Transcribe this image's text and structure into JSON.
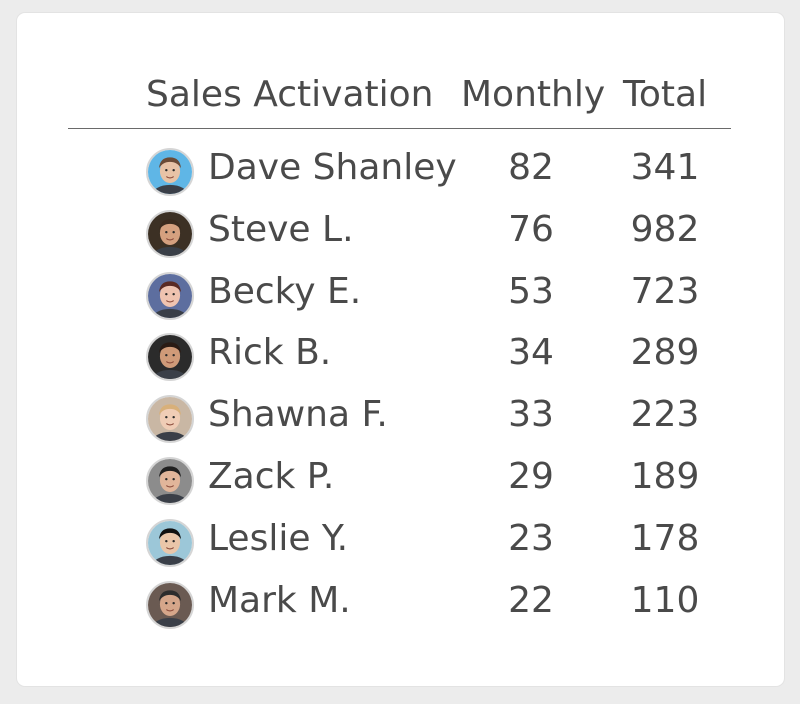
{
  "header": {
    "name": "Sales Activation",
    "monthly": "Monthly",
    "total": "Total"
  },
  "rows": [
    {
      "name": "Dave Shanley",
      "monthly": "82",
      "total": "341",
      "bg": "#5fb6e6",
      "skin": "#e8c3a6",
      "hair": "#6b4b36"
    },
    {
      "name": "Steve L.",
      "monthly": "76",
      "total": "982",
      "bg": "#3c3024",
      "skin": "#d5a07f",
      "hair": "#3a2a1e"
    },
    {
      "name": "Becky E.",
      "monthly": "53",
      "total": "723",
      "bg": "#5d6e9f",
      "skin": "#efc3b0",
      "hair": "#5a2a23"
    },
    {
      "name": "Rick B.",
      "monthly": "34",
      "total": "289",
      "bg": "#2b2b2b",
      "skin": "#cf9a78",
      "hair": "#2a1b15"
    },
    {
      "name": "Shawna F.",
      "monthly": "33",
      "total": "223",
      "bg": "#c9b7a4",
      "skin": "#f0cdb6",
      "hair": "#d8b07a"
    },
    {
      "name": "Zack P.",
      "monthly": "29",
      "total": "189",
      "bg": "#8c8c8c",
      "skin": "#e1b59a",
      "hair": "#1f1f1f"
    },
    {
      "name": "Leslie Y.",
      "monthly": "23",
      "total": "178",
      "bg": "#9cc7d8",
      "skin": "#eac6a9",
      "hair": "#111111"
    },
    {
      "name": "Mark M.",
      "monthly": "22",
      "total": "110",
      "bg": "#6a5a52",
      "skin": "#d5a68a",
      "hair": "#2d2d2d"
    }
  ]
}
